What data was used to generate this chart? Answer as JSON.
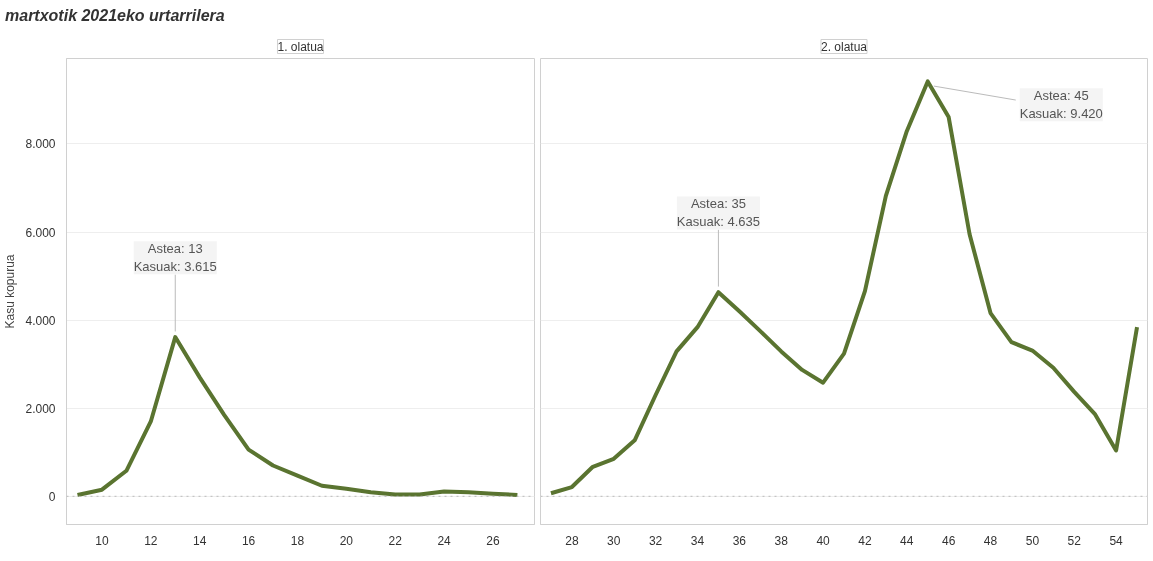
{
  "chart_data": [
    {
      "type": "line",
      "title": "martxotik 2021eko urtarrilera",
      "subtitle": "1. olatua",
      "ylabel": "Kasu kopurua",
      "x": [
        9,
        10,
        11,
        12,
        13,
        14,
        15,
        16,
        17,
        18,
        19,
        20,
        21,
        22,
        23,
        24,
        25,
        26,
        27
      ],
      "series": [
        {
          "color": "#5a7430",
          "values": [
            30,
            150,
            580,
            1700,
            3615,
            2700,
            1850,
            1060,
            700,
            470,
            240,
            170,
            90,
            40,
            40,
            110,
            90,
            60,
            30
          ]
        }
      ],
      "xlim": [
        8.55,
        27.7
      ],
      "xticks": [
        10,
        12,
        14,
        16,
        18,
        20,
        22,
        24,
        26
      ],
      "ylim": [
        -640,
        9940
      ],
      "yticks": [
        0,
        {
          "value": 2000,
          "label": "2.000"
        },
        {
          "value": 4000,
          "label": "4.000"
        },
        {
          "value": 6000,
          "label": "6.000"
        },
        {
          "value": 8000,
          "label": "8.000"
        }
      ],
      "grid": "y",
      "marker": "none",
      "line_style": "solid",
      "ref_lines": [
        {
          "axis": "y",
          "value": 0,
          "color": "#bbbbbb",
          "line_style": "dotted"
        }
      ],
      "annotations": [
        {
          "text": "Astea: 13\nKasuak: 3.615",
          "x": 13,
          "y": 3615
        }
      ]
    },
    {
      "type": "line",
      "subtitle": "2. olatua",
      "x": [
        27,
        28,
        29,
        30,
        31,
        32,
        33,
        34,
        35,
        36,
        37,
        38,
        39,
        40,
        41,
        42,
        43,
        44,
        45,
        46,
        47,
        48,
        49,
        50,
        51,
        52,
        53,
        54,
        55
      ],
      "series": [
        {
          "color": "#5a7430",
          "values": [
            70,
            210,
            670,
            850,
            1270,
            2300,
            3290,
            3840,
            4635,
            4200,
            3750,
            3290,
            2870,
            2580,
            3240,
            4660,
            6820,
            8290,
            9420,
            8610,
            5950,
            4160,
            3500,
            3310,
            2920,
            2370,
            1860,
            1040,
            3840
          ]
        }
      ],
      "xlim": [
        26.5,
        55.5
      ],
      "xticks": [
        28,
        30,
        32,
        34,
        36,
        38,
        40,
        42,
        44,
        46,
        48,
        50,
        52,
        54
      ],
      "ylim": [
        -640,
        9940
      ],
      "yticks": [
        0,
        2000,
        4000,
        6000,
        8000
      ],
      "tick_labels": "x",
      "grid": "y",
      "marker": "none",
      "line_style": "solid",
      "ref_lines": [
        {
          "axis": "y",
          "value": 0,
          "color": "#bbbbbb",
          "line_style": "dotted"
        }
      ],
      "annotations": [
        {
          "text": "Astea: 35\nKasuak: 4.635",
          "x": 35,
          "y": 4635
        },
        {
          "text": "Astea: 45\nKasuak: 9.420",
          "x": 45,
          "y": 9420
        }
      ]
    }
  ]
}
